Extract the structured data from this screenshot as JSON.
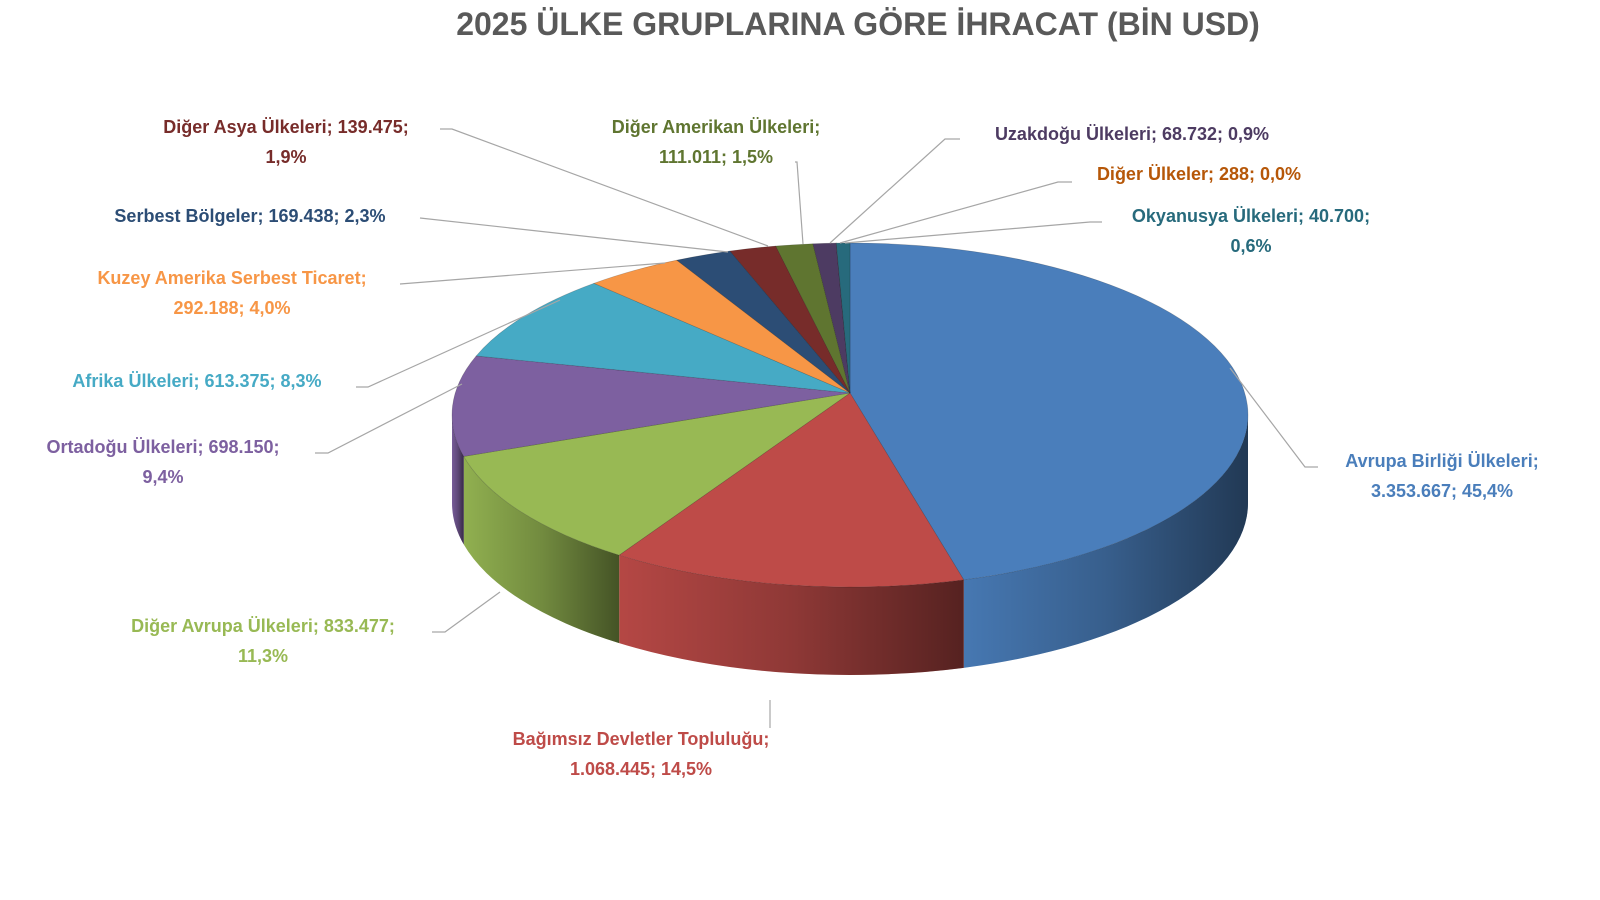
{
  "chart_data": {
    "type": "pie",
    "style": "3d",
    "title": "2025 ÜLKE GRUPLARINA GÖRE İHRACAT (BİN USD)",
    "legend": "none",
    "slices": [
      {
        "name": "Avrupa Birliği Ülkeleri",
        "value": 3353667,
        "value_label": "3.353.667",
        "pct": "45,4%",
        "color": "#4a7ebb",
        "label_color": "#4a7ebb"
      },
      {
        "name": "Bağımsız Devletler Topluluğu",
        "value": 1068445,
        "value_label": "1.068.445",
        "pct": "14,5%",
        "color": "#be4b48",
        "label_color": "#be4b48"
      },
      {
        "name": "Diğer Avrupa Ülkeleri",
        "value": 833477,
        "value_label": "833.477",
        "pct": "11,3%",
        "color": "#98b954",
        "label_color": "#98b954"
      },
      {
        "name": "Ortadoğu Ülkeleri",
        "value": 698150,
        "value_label": "698.150",
        "pct": "9,4%",
        "color": "#7d60a0",
        "label_color": "#7d60a0"
      },
      {
        "name": "Afrika Ülkeleri",
        "value": 613375,
        "value_label": "613.375",
        "pct": "8,3%",
        "color": "#46aac5",
        "label_color": "#46aac5"
      },
      {
        "name": "Kuzey Amerika Serbest Ticaret",
        "value": 292188,
        "value_label": "292.188",
        "pct": "4,0%",
        "color": "#f79646",
        "label_color": "#f79646"
      },
      {
        "name": "Serbest Bölgeler",
        "value": 169438,
        "value_label": "169.438",
        "pct": "2,3%",
        "color": "#2c4d75",
        "label_color": "#2c4d75"
      },
      {
        "name": "Diğer Asya Ülkeleri",
        "value": 139475,
        "value_label": "139.475",
        "pct": "1,9%",
        "color": "#772c2a",
        "label_color": "#772c2a"
      },
      {
        "name": "Diğer Amerikan Ülkeleri",
        "value": 111011,
        "value_label": "111.011",
        "pct": "1,5%",
        "color": "#5f7530",
        "label_color": "#5f7530"
      },
      {
        "name": "Uzakdoğu Ülkeleri",
        "value": 68732,
        "value_label": "68.732",
        "pct": "0,9%",
        "color": "#4d3b62",
        "label_color": "#4d3b62"
      },
      {
        "name": "Diğer Ülkeler",
        "value": 288,
        "value_label": "288",
        "pct": "0,0%",
        "color": "#b65708",
        "label_color": "#b65708"
      },
      {
        "name": "Okyanusya Ülkeleri",
        "value": 40700,
        "value_label": "40.700",
        "pct": "0,6%",
        "color": "#276a7c",
        "label_color": "#276a7c"
      }
    ]
  }
}
